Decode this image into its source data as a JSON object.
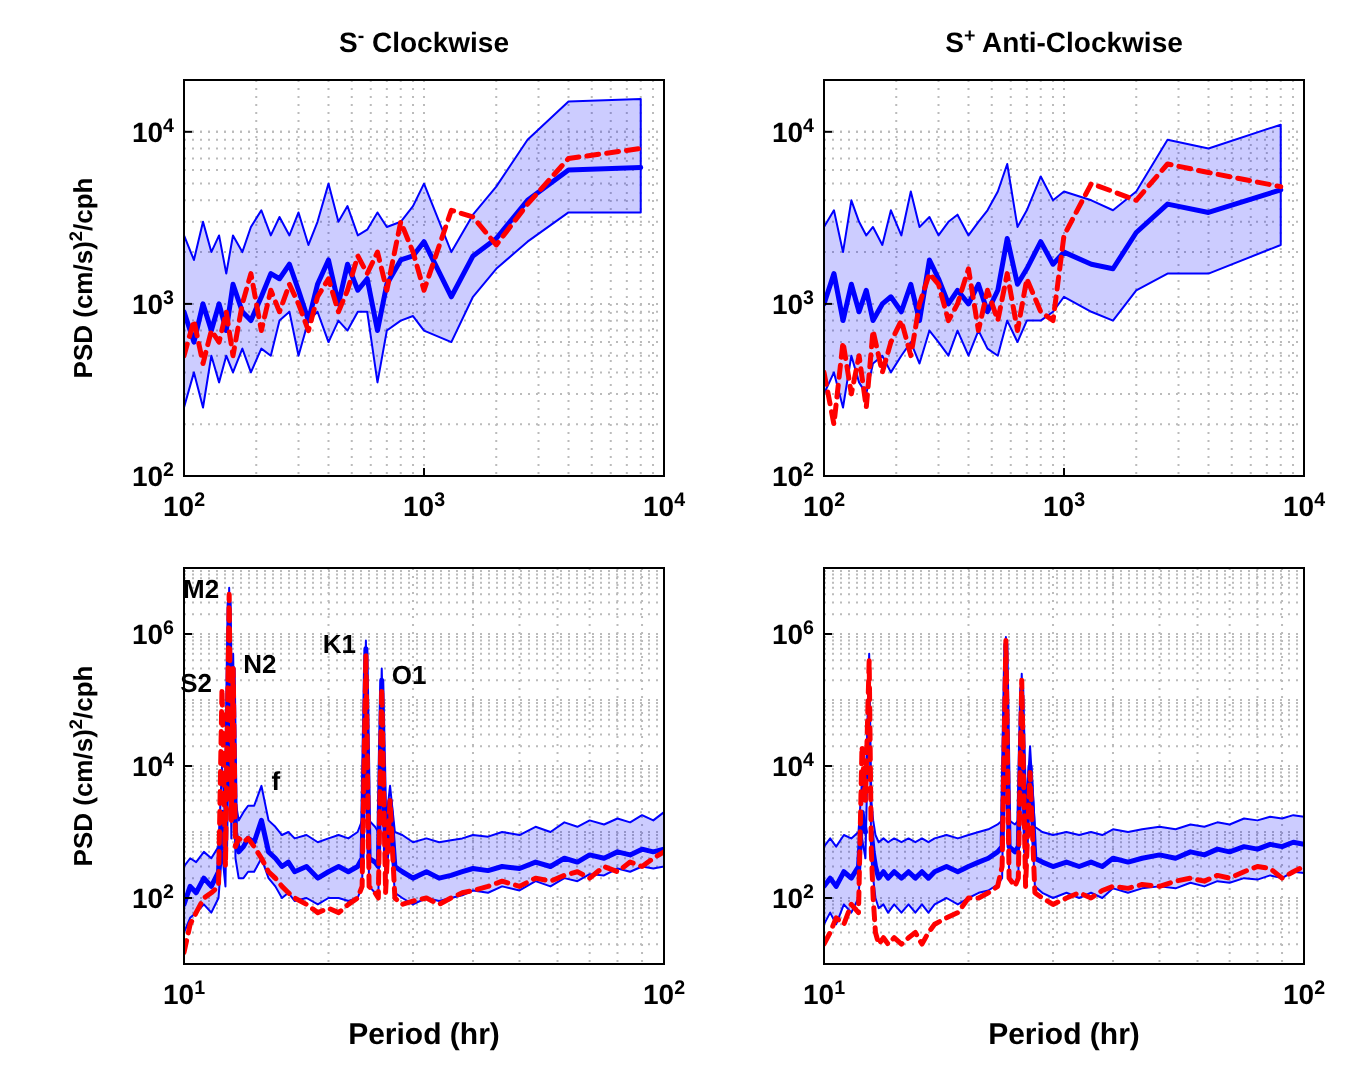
{
  "chart_data": [
    {
      "type": "line",
      "title": "S$^{-}$ Clockwise",
      "ylabel": "PSD (cm/s)$^{2}$/cph",
      "log": "xy",
      "grid": true,
      "xlim": [
        100,
        10000
      ],
      "ylim": [
        100,
        20000
      ],
      "xticks": [
        {
          "value": 100,
          "label": "10$^{2}$"
        },
        {
          "value": 1000,
          "label": "10$^{3}$"
        },
        {
          "value": 10000,
          "label": "10$^{4}$"
        }
      ],
      "yticks": [
        {
          "value": 100,
          "label": "10$^{2}$"
        },
        {
          "value": 1000,
          "label": "10$^{3}$"
        },
        {
          "value": 10000,
          "label": "10$^{4}$"
        }
      ],
      "x": [
        100,
        110,
        120,
        130,
        140,
        150,
        160,
        175,
        190,
        210,
        230,
        250,
        275,
        300,
        330,
        360,
        400,
        440,
        480,
        530,
        580,
        640,
        700,
        800,
        900,
        1000,
        1300,
        1600,
        2000,
        2700,
        4000,
        8000
      ],
      "series": [
        {
          "color": "#0000ff",
          "line_style": "solid",
          "values": [
            900,
            600,
            1000,
            700,
            1000,
            700,
            1300,
            900,
            800,
            1100,
            1500,
            1400,
            1700,
            1200,
            800,
            1300,
            1800,
            1000,
            1700,
            1200,
            1400,
            700,
            1300,
            1800,
            1900,
            2300,
            1100,
            1900,
            2400,
            4000,
            6000,
            6200
          ],
          "lower": [
            250,
            400,
            250,
            500,
            350,
            500,
            400,
            550,
            400,
            550,
            500,
            800,
            900,
            500,
            800,
            900,
            600,
            800,
            700,
            900,
            900,
            350,
            700,
            800,
            850,
            700,
            600,
            1100,
            1600,
            2300,
            3400,
            3400
          ],
          "upper": [
            2500,
            1800,
            3000,
            2000,
            2500,
            1500,
            2500,
            2000,
            2800,
            3500,
            2500,
            3200,
            2500,
            3400,
            2200,
            3000,
            5000,
            3000,
            3700,
            2500,
            2700,
            3400,
            2800,
            3000,
            3700,
            5000,
            2000,
            3300,
            4800,
            9000,
            15000,
            15500
          ]
        },
        {
          "color": "#ff0000",
          "line_style": "dashed",
          "values": [
            500,
            800,
            450,
            700,
            600,
            900,
            500,
            1000,
            1500,
            700,
            1200,
            900,
            1300,
            1000,
            700,
            1100,
            1400,
            900,
            1200,
            1900,
            1500,
            2000,
            1200,
            3000,
            2000,
            1200,
            3500,
            3200,
            2200,
            3800,
            7000,
            8000
          ]
        }
      ]
    },
    {
      "type": "line",
      "title": "S$^{+}$ Anti-Clockwise",
      "log": "xy",
      "grid": true,
      "xlim": [
        100,
        10000
      ],
      "ylim": [
        100,
        20000
      ],
      "xticks": [
        {
          "value": 100,
          "label": "10$^{2}$"
        },
        {
          "value": 1000,
          "label": "10$^{3}$"
        },
        {
          "value": 10000,
          "label": "10$^{4}$"
        }
      ],
      "yticks": [
        {
          "value": 100,
          "label": "10$^{2}$"
        },
        {
          "value": 1000,
          "label": "10$^{3}$"
        },
        {
          "value": 10000,
          "label": "10$^{4}$"
        }
      ],
      "x": [
        100,
        110,
        120,
        130,
        140,
        150,
        160,
        175,
        190,
        210,
        230,
        250,
        275,
        300,
        330,
        360,
        400,
        440,
        480,
        530,
        580,
        640,
        700,
        800,
        900,
        1000,
        1300,
        1600,
        2000,
        2700,
        4000,
        8000
      ],
      "series": [
        {
          "color": "#0000ff",
          "line_style": "solid",
          "values": [
            1000,
            1500,
            800,
            1300,
            900,
            1200,
            800,
            1000,
            1100,
            900,
            1300,
            800,
            1800,
            1400,
            1000,
            1200,
            1000,
            1300,
            900,
            1200,
            2400,
            1300,
            1600,
            2300,
            1700,
            2000,
            1700,
            1600,
            2600,
            3800,
            3400,
            4600
          ],
          "lower": [
            300,
            400,
            250,
            500,
            350,
            300,
            450,
            500,
            400,
            500,
            600,
            450,
            700,
            600,
            500,
            700,
            500,
            700,
            550,
            500,
            800,
            600,
            800,
            800,
            900,
            1100,
            900,
            800,
            1200,
            1500,
            1500,
            2200
          ],
          "upper": [
            2800,
            3500,
            2000,
            4000,
            3000,
            2500,
            2800,
            2200,
            3500,
            2500,
            4500,
            2800,
            3200,
            2500,
            3000,
            3300,
            2500,
            3000,
            3500,
            4500,
            6500,
            2800,
            3500,
            5500,
            4000,
            4500,
            4000,
            3500,
            4500,
            9000,
            8000,
            11000
          ]
        },
        {
          "color": "#ff0000",
          "line_style": "dashed",
          "values": [
            400,
            200,
            600,
            300,
            500,
            250,
            700,
            400,
            600,
            800,
            500,
            1000,
            1500,
            1300,
            800,
            1000,
            1600,
            700,
            1200,
            800,
            1500,
            700,
            1400,
            900,
            800,
            2500,
            5000,
            4500,
            4000,
            6500,
            5800,
            4800
          ]
        }
      ]
    },
    {
      "type": "line",
      "ylabel": "PSD (cm/s)$^{2}$/cph",
      "xlabel": "Period (hr)",
      "log": "xy",
      "grid": true,
      "xlim": [
        10,
        100
      ],
      "ylim": [
        10,
        10000000
      ],
      "xticks": [
        {
          "value": 10,
          "label": "10$^{1}$"
        },
        {
          "value": 100,
          "label": "10$^{2}$"
        }
      ],
      "yticks": [
        {
          "value": 100,
          "label": "10$^{2}$"
        },
        {
          "value": 10000,
          "label": "10$^{4}$"
        },
        {
          "value": 1000000,
          "label": "10$^{6}$"
        }
      ],
      "x": [
        10,
        10.3,
        10.6,
        11,
        11.4,
        11.8,
        12.0,
        12.2,
        12.42,
        12.55,
        12.66,
        12.8,
        13.0,
        13.3,
        13.6,
        14.0,
        14.5,
        15,
        15.5,
        16,
        16.5,
        17,
        18,
        19,
        20,
        21,
        22,
        23,
        23.5,
        23.93,
        24.3,
        25,
        25.4,
        25.82,
        26.3,
        26.87,
        27.5,
        28.5,
        30,
        32,
        34,
        36,
        38,
        40,
        43,
        46,
        50,
        54,
        58,
        62,
        66,
        70,
        75,
        80,
        85,
        90,
        95,
        100
      ],
      "series": [
        {
          "color": "#0000ff",
          "line_style": "solid",
          "values": [
            80,
            150,
            120,
            200,
            150,
            250,
            2000,
            400,
            3000000,
            3000,
            300000,
            1000,
            500,
            600,
            800,
            700,
            1500,
            500,
            400,
            300,
            350,
            250,
            300,
            200,
            250,
            300,
            250,
            300,
            400,
            600000,
            400,
            350,
            300,
            200000,
            400,
            3000,
            300,
            250,
            200,
            250,
            200,
            220,
            250,
            280,
            260,
            300,
            280,
            350,
            300,
            400,
            350,
            450,
            400,
            500,
            450,
            550,
            500,
            550
          ],
          "lower": [
            30,
            50,
            60,
            80,
            60,
            100,
            500,
            150,
            1000000,
            800,
            80000,
            400,
            200,
            200,
            250,
            250,
            400,
            200,
            150,
            100,
            120,
            90,
            100,
            80,
            100,
            100,
            90,
            100,
            150,
            200000,
            150,
            120,
            100,
            60000,
            150,
            1000,
            120,
            100,
            80,
            100,
            90,
            100,
            110,
            130,
            120,
            150,
            130,
            180,
            150,
            200,
            180,
            230,
            220,
            280,
            250,
            300,
            280,
            300
          ],
          "upper": [
            300,
            400,
            350,
            500,
            400,
            600,
            10000,
            1500,
            5000000,
            10000,
            500000,
            3000,
            1500,
            2000,
            2500,
            2500,
            5000,
            1500,
            1200,
            900,
            1000,
            800,
            900,
            700,
            800,
            900,
            800,
            1000,
            1500,
            800000,
            1500,
            1200,
            1000,
            300000,
            1200,
            5000,
            1000,
            900,
            700,
            800,
            700,
            750,
            800,
            900,
            850,
            1000,
            900,
            1200,
            1000,
            1400,
            1200,
            1500,
            1300,
            1600,
            1400,
            1800,
            1500,
            2000
          ]
        },
        {
          "color": "#ff0000",
          "line_style": "dashed",
          "values": [
            15,
            40,
            60,
            100,
            120,
            150,
            150000,
            300,
            4000000,
            1500,
            300000,
            600,
            800,
            700,
            800,
            600,
            400,
            250,
            200,
            150,
            120,
            100,
            80,
            60,
            70,
            60,
            80,
            100,
            150,
            500000,
            150,
            120,
            100,
            150000,
            120,
            3000,
            100,
            80,
            90,
            100,
            80,
            100,
            120,
            130,
            150,
            180,
            150,
            200,
            180,
            220,
            250,
            200,
            300,
            250,
            350,
            300,
            400,
            500
          ]
        }
      ],
      "annotations": [
        {
          "text": "S2",
          "x": 12.0,
          "y": 150000
        },
        {
          "text": "M2",
          "x": 12.42,
          "y": 4000000
        },
        {
          "text": "N2",
          "x": 12.66,
          "y": 300000
        },
        {
          "text": "f",
          "x": 14.5,
          "y": 5000
        },
        {
          "text": "K1",
          "x": 23.93,
          "y": 600000
        },
        {
          "text": "O1",
          "x": 25.82,
          "y": 200000
        }
      ]
    },
    {
      "type": "line",
      "xlabel": "Period (hr)",
      "log": "xy",
      "grid": true,
      "xlim": [
        10,
        100
      ],
      "ylim": [
        10,
        10000000
      ],
      "xticks": [
        {
          "value": 10,
          "label": "10$^{1}$"
        },
        {
          "value": 100,
          "label": "10$^{2}$"
        }
      ],
      "yticks": [
        {
          "value": 100,
          "label": "10$^{2}$"
        },
        {
          "value": 10000,
          "label": "10$^{4}$"
        },
        {
          "value": 1000000,
          "label": "10$^{6}$"
        }
      ],
      "x": [
        10,
        10.3,
        10.6,
        11,
        11.4,
        11.8,
        12.0,
        12.2,
        12.42,
        12.55,
        12.66,
        12.8,
        13.0,
        13.3,
        13.6,
        14.0,
        14.5,
        15,
        15.5,
        16,
        16.5,
        17,
        18,
        19,
        20,
        21,
        22,
        23,
        23.5,
        23.93,
        24.3,
        25,
        25.4,
        25.82,
        26.3,
        26.87,
        27.5,
        28.5,
        30,
        32,
        34,
        36,
        38,
        40,
        43,
        46,
        50,
        54,
        58,
        62,
        66,
        70,
        75,
        80,
        85,
        90,
        95,
        100
      ],
      "series": [
        {
          "color": "#0000ff",
          "line_style": "solid",
          "values": [
            150,
            200,
            150,
            250,
            200,
            300,
            2000,
            1000,
            null,
            1000,
            500,
            300,
            200,
            250,
            200,
            250,
            200,
            250,
            200,
            250,
            200,
            250,
            300,
            250,
            300,
            350,
            400,
            500,
            600,
            700000,
            600,
            500,
            600,
            150000,
            500,
            10000,
            400,
            350,
            300,
            350,
            300,
            350,
            300,
            400,
            350,
            400,
            450,
            400,
            500,
            450,
            550,
            500,
            600,
            550,
            650,
            600,
            700,
            650
          ],
          "lower": [
            40,
            60,
            40,
            80,
            60,
            100,
            800,
            400,
            150000,
            400,
            200,
            100,
            70,
            80,
            60,
            80,
            60,
            80,
            60,
            80,
            60,
            80,
            100,
            80,
            100,
            120,
            130,
            160,
            200,
            400000,
            200,
            170,
            200,
            80000,
            170,
            5000,
            150,
            120,
            100,
            120,
            100,
            120,
            100,
            140,
            120,
            140,
            150,
            140,
            170,
            150,
            180,
            170,
            200,
            190,
            220,
            200,
            250,
            240
          ],
          "upper": [
            600,
            800,
            600,
            900,
            800,
            1000,
            6000,
            3000,
            500000,
            3000,
            1500,
            900,
            700,
            800,
            700,
            800,
            700,
            800,
            700,
            800,
            700,
            800,
            900,
            800,
            900,
            1000,
            1100,
            1300,
            1500,
            900000,
            1500,
            1300,
            1500,
            250000,
            1300,
            20000,
            1200,
            1000,
            900,
            1000,
            900,
            1000,
            900,
            1100,
            1000,
            1100,
            1200,
            1100,
            1300,
            1200,
            1400,
            1300,
            1600,
            1500,
            1700,
            1600,
            1800,
            1700
          ]
        },
        {
          "color": "#ff0000",
          "line_style": "dashed",
          "values": [
            20,
            30,
            50,
            40,
            80,
            60,
            20000,
            3000,
            400000,
            500,
            100,
            30,
            20,
            25,
            20,
            25,
            20,
            25,
            30,
            20,
            30,
            40,
            50,
            60,
            100,
            100,
            120,
            150,
            300,
            800000,
            200,
            150,
            200,
            200000,
            150,
            8000,
            120,
            100,
            80,
            100,
            120,
            100,
            130,
            150,
            140,
            160,
            150,
            180,
            200,
            180,
            220,
            200,
            250,
            300,
            280,
            200,
            250,
            300
          ]
        }
      ]
    }
  ]
}
